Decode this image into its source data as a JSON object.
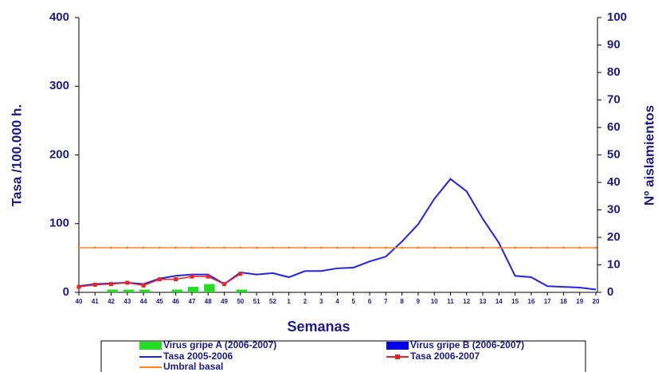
{
  "chart_data": {
    "type": "line",
    "xlabel": "Semanas",
    "ylabel": "Tasa /100.000 h.",
    "y2label": "Nº aislamientos",
    "categories": [
      "40",
      "41",
      "42",
      "43",
      "44",
      "45",
      "46",
      "47",
      "48",
      "49",
      "50",
      "51",
      "52",
      "1",
      "2",
      "3",
      "4",
      "5",
      "6",
      "7",
      "8",
      "9",
      "10",
      "11",
      "12",
      "13",
      "14",
      "15",
      "16",
      "17",
      "18",
      "19",
      "20"
    ],
    "ylim": [
      0,
      400
    ],
    "yticks": [
      0,
      100,
      200,
      300,
      400
    ],
    "y2lim": [
      0,
      100
    ],
    "y2ticks": [
      0,
      10,
      20,
      30,
      40,
      50,
      60,
      70,
      80,
      90,
      100
    ],
    "series": [
      {
        "name": "Virus gripe A (2006-2007)",
        "type": "bar",
        "axis": "y2",
        "color": "#22dd22",
        "values": [
          0,
          0,
          1,
          1,
          1,
          0,
          1,
          2,
          3,
          0,
          1,
          null,
          null,
          null,
          null,
          null,
          null,
          null,
          null,
          null,
          null,
          null,
          null,
          null,
          null,
          null,
          null,
          null,
          null,
          null,
          null,
          null,
          null
        ]
      },
      {
        "name": "Virus gripe B (2006-2007)",
        "type": "bar",
        "axis": "y2",
        "color": "#0000ee",
        "values": [
          null,
          null,
          null,
          null,
          null,
          null,
          null,
          null,
          null,
          null,
          null,
          null,
          null,
          null,
          null,
          null,
          null,
          null,
          null,
          null,
          null,
          null,
          null,
          null,
          null,
          null,
          null,
          null,
          null,
          null,
          null,
          null,
          null
        ]
      },
      {
        "name": "Tasa 2005-2006",
        "type": "line",
        "color": "#2222ee",
        "marker": false,
        "values": [
          9,
          12,
          13,
          14,
          12,
          20,
          24,
          26,
          26,
          12,
          29,
          26,
          28,
          22,
          31,
          31,
          35,
          36,
          45,
          52,
          74,
          99,
          136,
          165,
          147,
          107,
          72,
          24,
          22,
          9,
          8,
          7,
          4
        ]
      },
      {
        "name": "Tasa 2006-2007",
        "type": "line",
        "color": "#ee2222",
        "marker": true,
        "values": [
          8,
          11,
          12,
          14,
          10,
          19,
          19,
          23,
          23,
          12,
          27,
          null,
          null,
          null,
          null,
          null,
          null,
          null,
          null,
          null,
          null,
          null,
          null,
          null,
          null,
          null,
          null,
          null,
          null,
          null,
          null,
          null,
          null
        ]
      },
      {
        "name": "Umbral basal",
        "type": "line",
        "color": "#ff8020",
        "marker": true,
        "values": [
          65,
          65,
          65,
          65,
          65,
          65,
          65,
          65,
          65,
          65,
          65,
          65,
          65,
          65,
          65,
          65,
          65,
          65,
          65,
          65,
          65,
          65,
          65,
          65,
          65,
          65,
          65,
          65,
          65,
          65,
          65,
          65,
          65
        ]
      }
    ]
  }
}
